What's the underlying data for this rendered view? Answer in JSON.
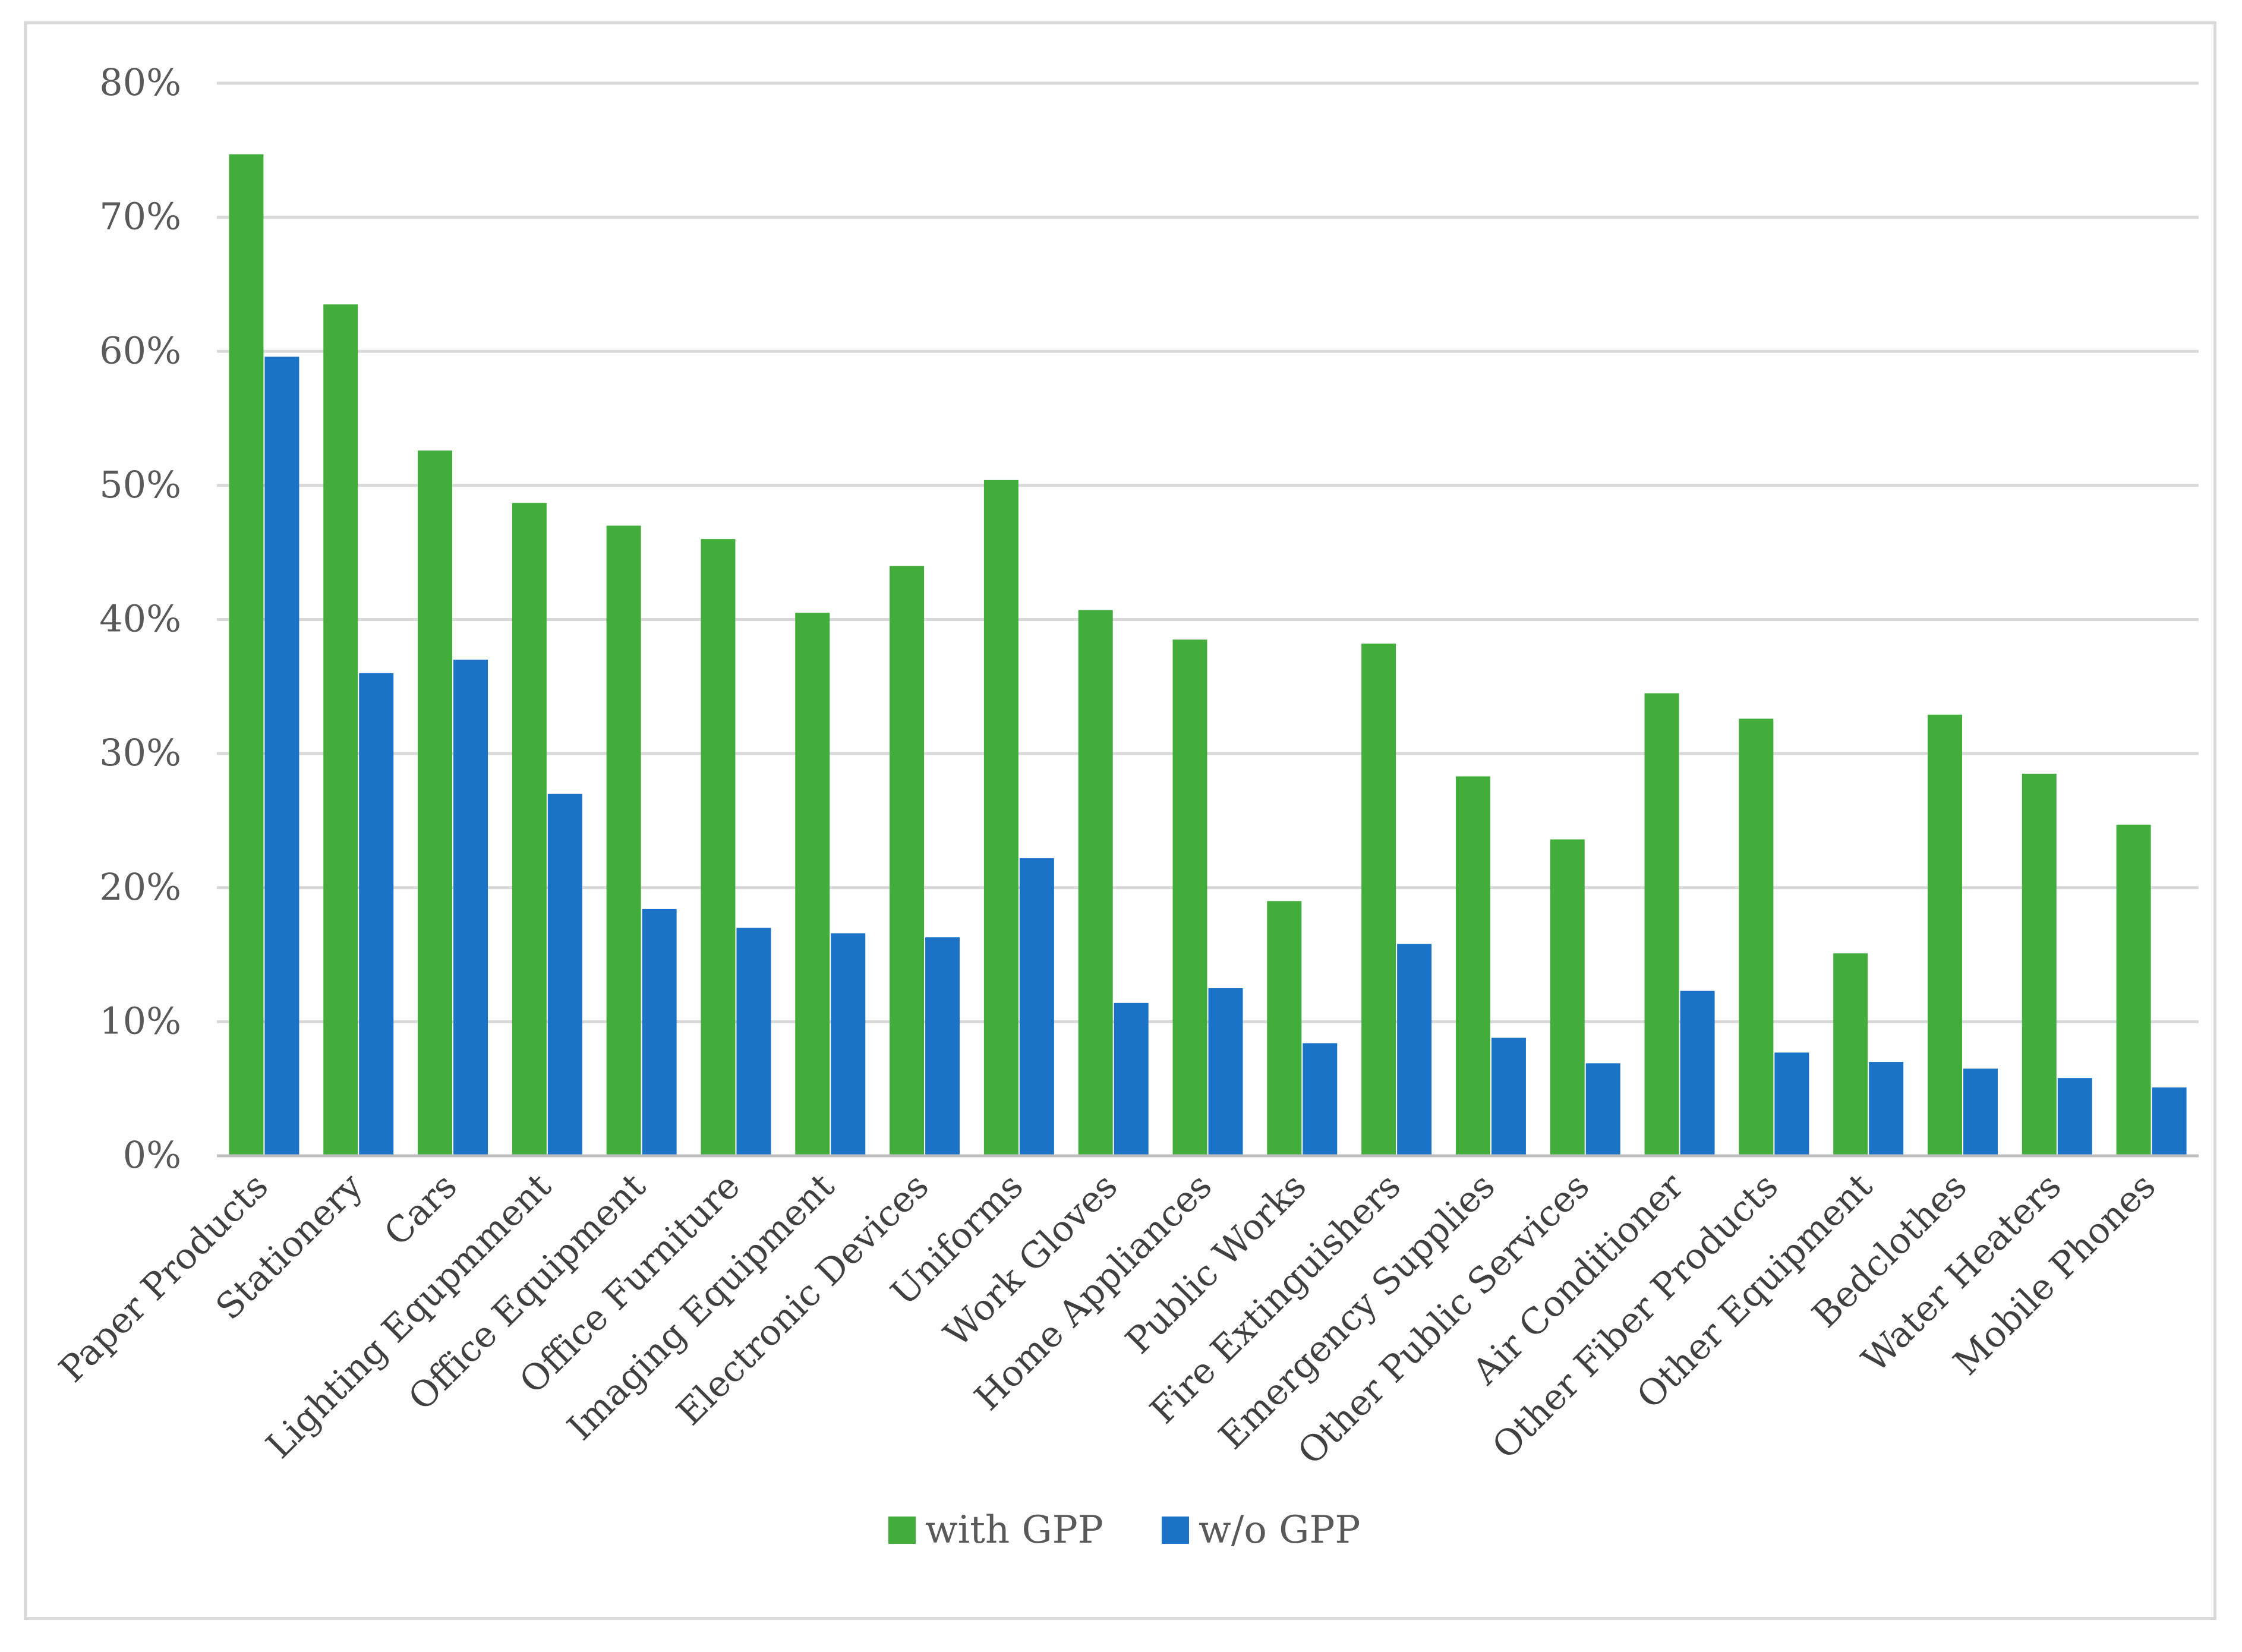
{
  "chart_data": {
    "type": "bar",
    "title": "",
    "xlabel": "",
    "ylabel": "",
    "ylim": [
      0,
      80
    ],
    "yticks": [
      0,
      10,
      20,
      30,
      40,
      50,
      60,
      70,
      80
    ],
    "ytick_labels": [
      "0%",
      "10%",
      "20%",
      "30%",
      "40%",
      "50%",
      "60%",
      "70%",
      "80%"
    ],
    "grid": true,
    "legend_position": "bottom",
    "categories": [
      "Paper Products",
      "Stationery",
      "Cars",
      "Lighting Equpmment",
      "Office Equipment",
      "Office Furniture",
      "Imaging Equipment",
      "Electronic Devices",
      "Uniforms",
      "Work Gloves",
      "Home Appliances",
      "Public Works",
      "Fire Extinguishers",
      "Emergency Supplies",
      "Other Public Services",
      "Air Conditioner",
      "Other Fiber Products",
      "Other Equipment",
      "Bedclothes",
      "Water Heaters",
      "Mobile Phones"
    ],
    "series": [
      {
        "name": "with GPP",
        "color": "#43ad3c",
        "values": [
          74.7,
          63.5,
          52.6,
          48.7,
          47.0,
          46.0,
          40.5,
          44.0,
          50.4,
          40.7,
          38.5,
          19.0,
          38.2,
          28.3,
          23.6,
          34.5,
          32.6,
          15.1,
          32.9,
          28.5,
          24.7
        ]
      },
      {
        "name": "w/o GPP",
        "color": "#1a73c7",
        "values": [
          59.6,
          36.0,
          37.0,
          27.0,
          18.4,
          17.0,
          16.6,
          16.3,
          22.2,
          11.4,
          12.5,
          8.4,
          15.8,
          8.8,
          6.9,
          12.3,
          7.7,
          7.0,
          6.5,
          5.8,
          5.1
        ]
      }
    ]
  }
}
